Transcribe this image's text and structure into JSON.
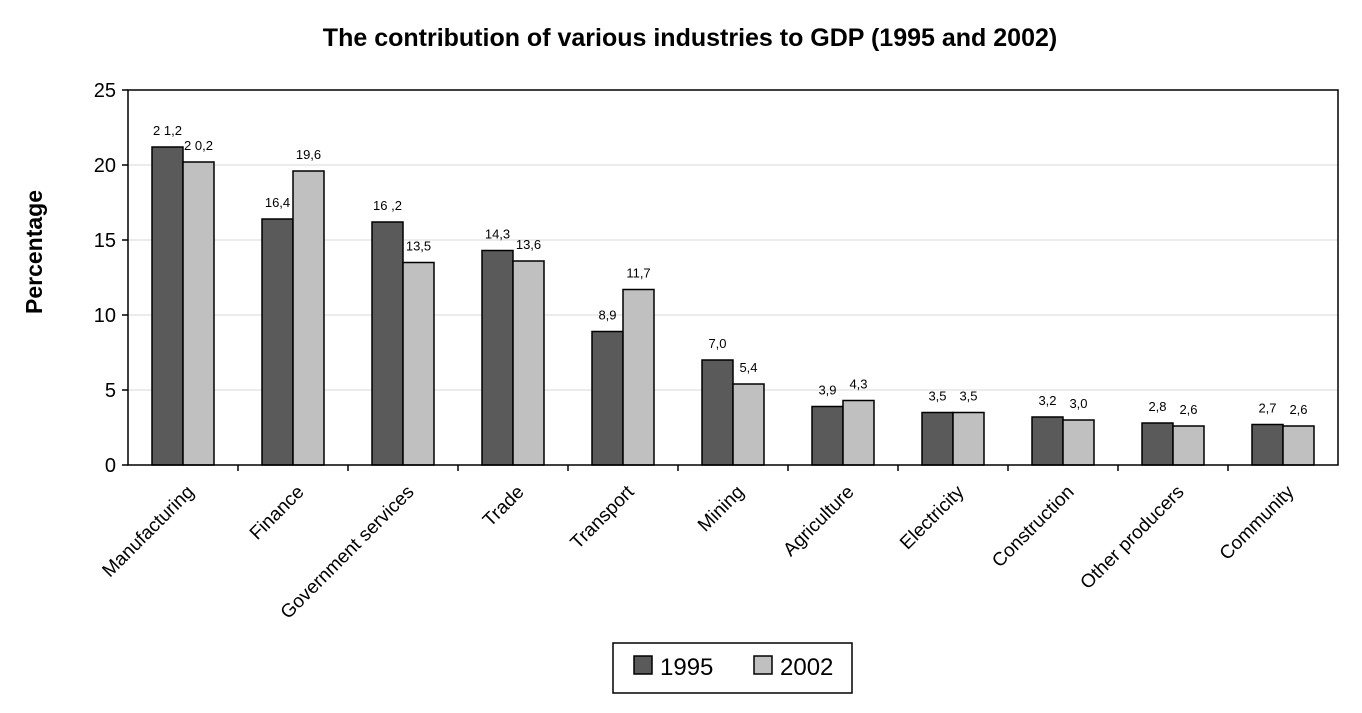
{
  "chart_data": {
    "type": "bar",
    "title": "The contribution of various industries to GDP (1995 and 2002)",
    "xlabel": "",
    "ylabel": "Percentage",
    "ylim": [
      0,
      25
    ],
    "yticks": [
      0,
      5,
      10,
      15,
      20,
      25
    ],
    "grid": true,
    "legend_position": "bottom",
    "categories": [
      "Manufacturing",
      "Finance",
      "Government services",
      "Trade",
      "Transport",
      "Mining",
      "Agriculture",
      "Electricity",
      "Construction",
      "Other producers",
      "Community"
    ],
    "series": [
      {
        "name": "1995",
        "color": "#5a5a5a",
        "values": [
          21.2,
          16.4,
          16.2,
          14.3,
          8.9,
          7.0,
          3.9,
          3.5,
          3.2,
          2.8,
          2.7
        ],
        "labels": [
          "2 1,2",
          "16,4",
          "16 ,2",
          "14,3",
          "8,9",
          "7,0",
          "3,9",
          "3,5",
          "3,2",
          "2,8",
          "2,7"
        ]
      },
      {
        "name": "2002",
        "color": "#c0c0c0",
        "values": [
          20.2,
          19.6,
          13.5,
          13.6,
          11.7,
          5.4,
          4.3,
          3.5,
          3.0,
          2.6,
          2.6
        ],
        "labels": [
          "2 0,2",
          "19,6",
          "13,5",
          "13,6",
          "11,7",
          "5,4",
          "4,3",
          "3,5",
          "3,0",
          "2,6",
          "2,6"
        ]
      }
    ]
  }
}
